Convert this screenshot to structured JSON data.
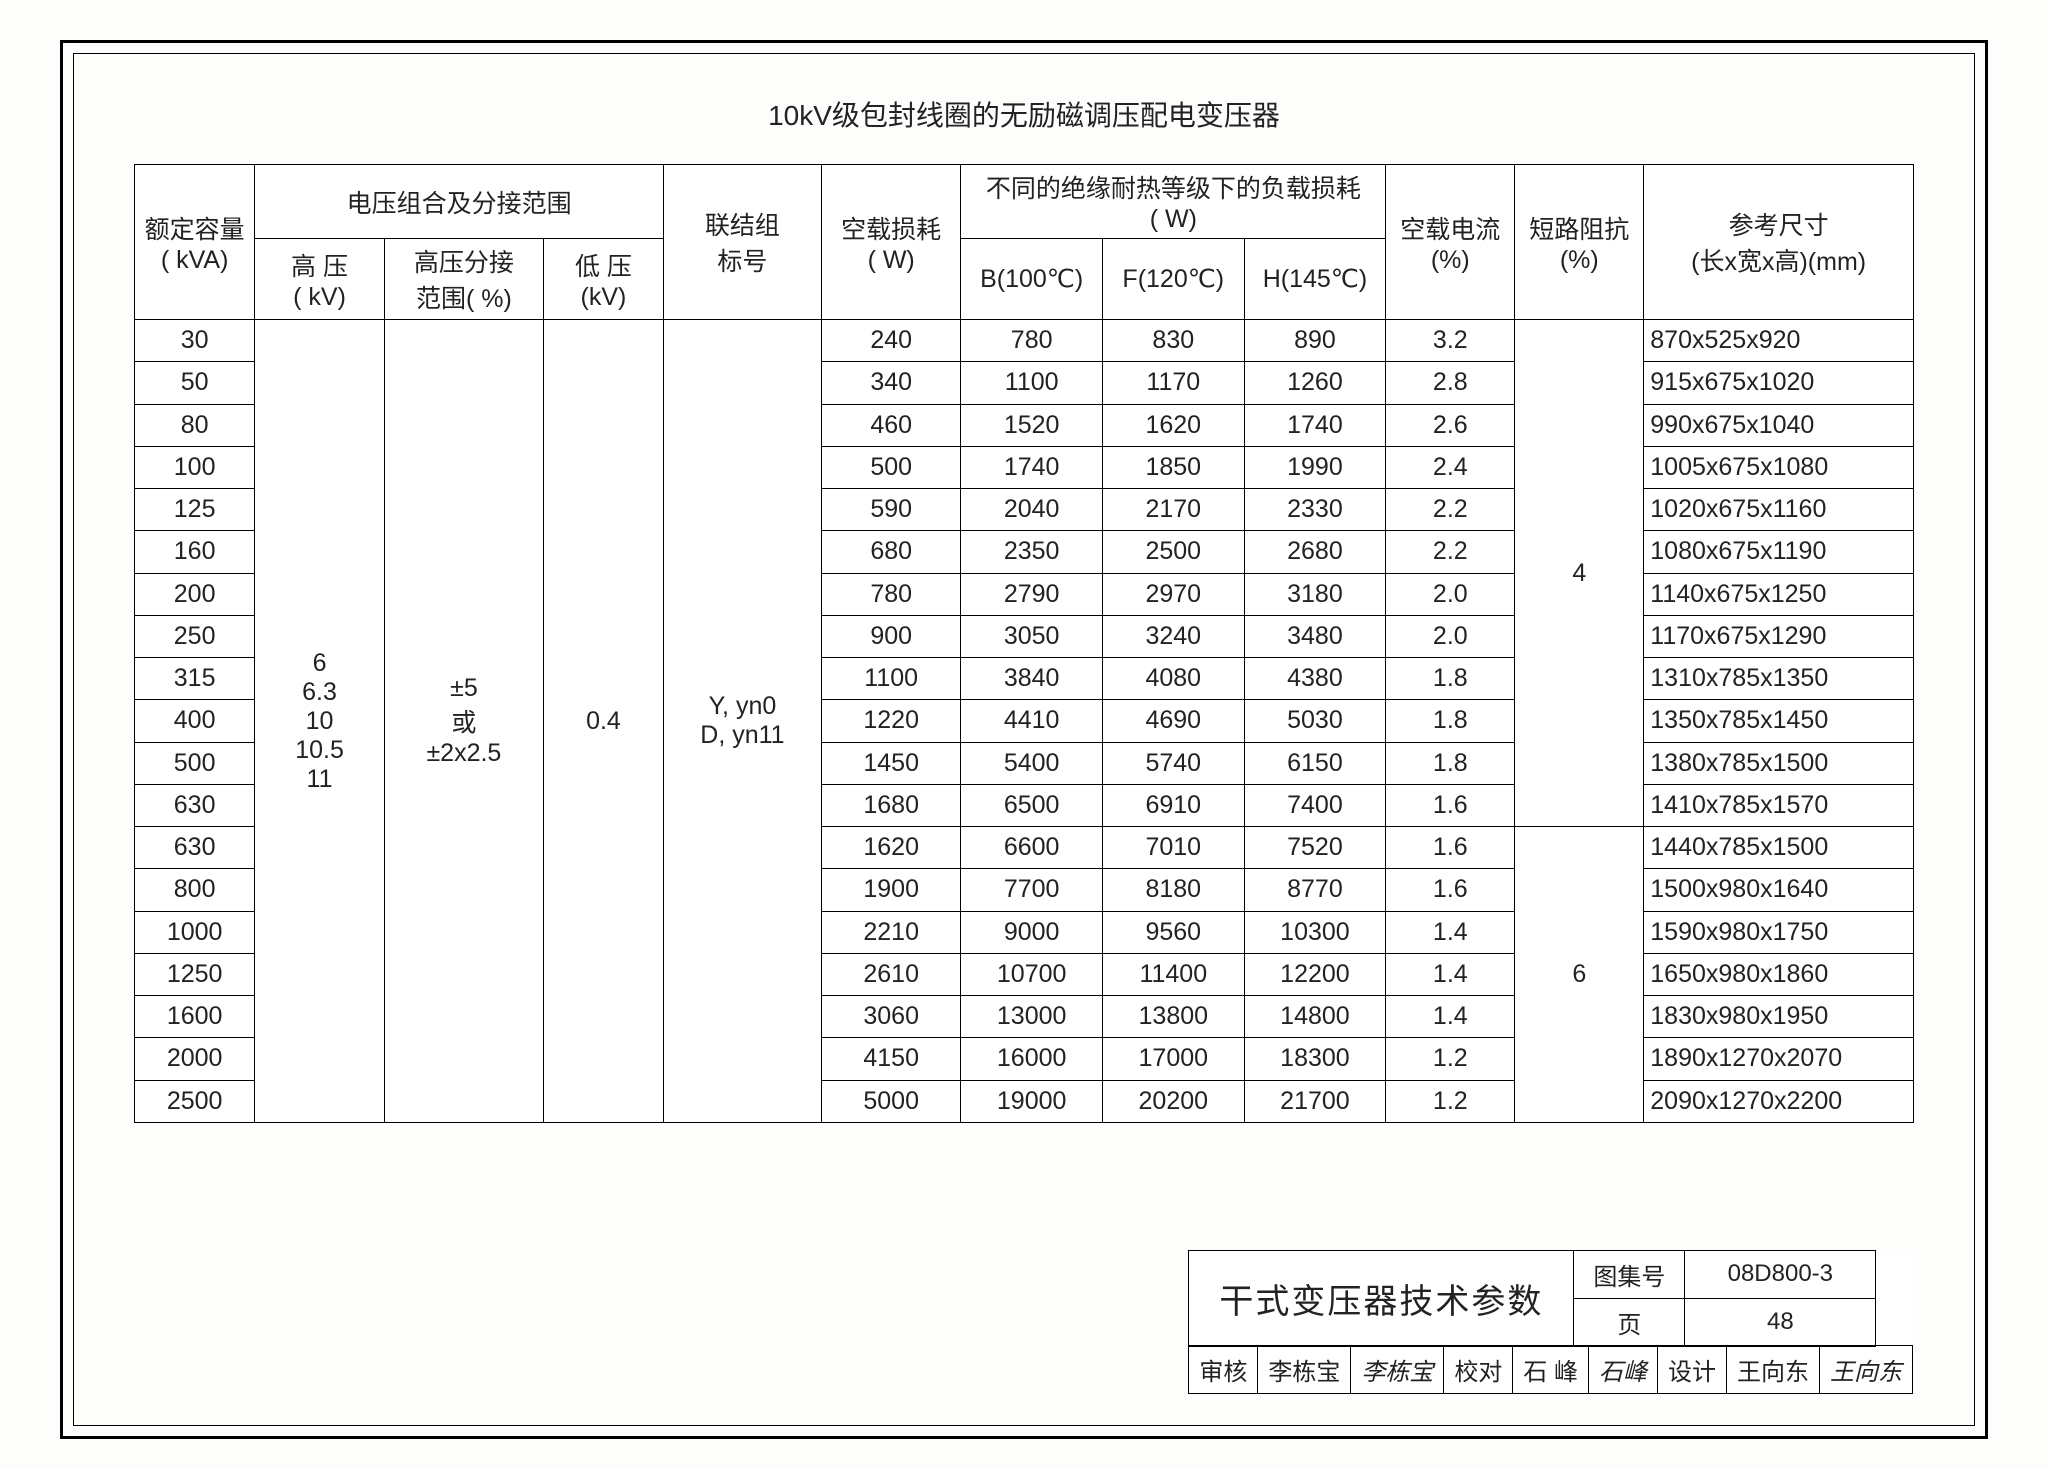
{
  "title": "10kV级包封线圈的无励磁调压配电变压器",
  "headers": {
    "kva": "额定容量\n( kVA)",
    "volt_group": "电压组合及分接范围",
    "hv": "高  压\n( kV)",
    "tap": "高压分接\n范围( %)",
    "lv": "低 压\n(kV)",
    "conn": "联结组\n标号",
    "noload": "空载损耗\n( W)",
    "loadloss_group": "不同的绝缘耐热等级下的负载损耗\n( W)",
    "b": "B(100℃)",
    "f": "F(120℃)",
    "h": "H(145℃)",
    "io": "空载电流\n(%)",
    "zk": "短路阻抗\n(%)",
    "dim": "参考尺寸\n(长x宽x高)(mm)"
  },
  "shared": {
    "hv": "6\n6.3\n10\n10.5\n11",
    "tap": "±5\n或\n±2x2.5",
    "lv": "0.4",
    "conn": "Y, yn0\nD, yn11",
    "zk1": "4",
    "zk2": "6"
  },
  "rows": [
    {
      "kva": "30",
      "nl": "240",
      "b": "780",
      "f": "830",
      "h": "890",
      "io": "3.2",
      "dim": "870x525x920"
    },
    {
      "kva": "50",
      "nl": "340",
      "b": "1100",
      "f": "1170",
      "h": "1260",
      "io": "2.8",
      "dim": "915x675x1020"
    },
    {
      "kva": "80",
      "nl": "460",
      "b": "1520",
      "f": "1620",
      "h": "1740",
      "io": "2.6",
      "dim": "990x675x1040"
    },
    {
      "kva": "100",
      "nl": "500",
      "b": "1740",
      "f": "1850",
      "h": "1990",
      "io": "2.4",
      "dim": "1005x675x1080"
    },
    {
      "kva": "125",
      "nl": "590",
      "b": "2040",
      "f": "2170",
      "h": "2330",
      "io": "2.2",
      "dim": "1020x675x1160"
    },
    {
      "kva": "160",
      "nl": "680",
      "b": "2350",
      "f": "2500",
      "h": "2680",
      "io": "2.2",
      "dim": "1080x675x1190"
    },
    {
      "kva": "200",
      "nl": "780",
      "b": "2790",
      "f": "2970",
      "h": "3180",
      "io": "2.0",
      "dim": "1140x675x1250"
    },
    {
      "kva": "250",
      "nl": "900",
      "b": "3050",
      "f": "3240",
      "h": "3480",
      "io": "2.0",
      "dim": "1170x675x1290"
    },
    {
      "kva": "315",
      "nl": "1100",
      "b": "3840",
      "f": "4080",
      "h": "4380",
      "io": "1.8",
      "dim": "1310x785x1350"
    },
    {
      "kva": "400",
      "nl": "1220",
      "b": "4410",
      "f": "4690",
      "h": "5030",
      "io": "1.8",
      "dim": "1350x785x1450"
    },
    {
      "kva": "500",
      "nl": "1450",
      "b": "5400",
      "f": "5740",
      "h": "6150",
      "io": "1.8",
      "dim": "1380x785x1500"
    },
    {
      "kva": "630",
      "nl": "1680",
      "b": "6500",
      "f": "6910",
      "h": "7400",
      "io": "1.6",
      "dim": "1410x785x1570"
    },
    {
      "kva": "630",
      "nl": "1620",
      "b": "6600",
      "f": "7010",
      "h": "7520",
      "io": "1.6",
      "dim": "1440x785x1500"
    },
    {
      "kva": "800",
      "nl": "1900",
      "b": "7700",
      "f": "8180",
      "h": "8770",
      "io": "1.6",
      "dim": "1500x980x1640"
    },
    {
      "kva": "1000",
      "nl": "2210",
      "b": "9000",
      "f": "9560",
      "h": "10300",
      "io": "1.4",
      "dim": "1590x980x1750"
    },
    {
      "kva": "1250",
      "nl": "2610",
      "b": "10700",
      "f": "11400",
      "h": "12200",
      "io": "1.4",
      "dim": "1650x980x1860"
    },
    {
      "kva": "1600",
      "nl": "3060",
      "b": "13000",
      "f": "13800",
      "h": "14800",
      "io": "1.4",
      "dim": "1830x980x1950"
    },
    {
      "kva": "2000",
      "nl": "4150",
      "b": "16000",
      "f": "17000",
      "h": "18300",
      "io": "1.2",
      "dim": "1890x1270x2070"
    },
    {
      "kva": "2500",
      "nl": "5000",
      "b": "19000",
      "f": "20200",
      "h": "21700",
      "io": "1.2",
      "dim": "2090x1270x2200"
    }
  ],
  "titleblock": {
    "main": "干式变压器技术参数",
    "atlas_label": "图集号",
    "atlas_no": "08D800-3",
    "review_label": "审核",
    "review_name": "李栋宝",
    "check_label": "校对",
    "check_name": "石   峰",
    "design_label": "设计",
    "design_name": "王向东",
    "page_label": "页",
    "page_no": "48"
  }
}
